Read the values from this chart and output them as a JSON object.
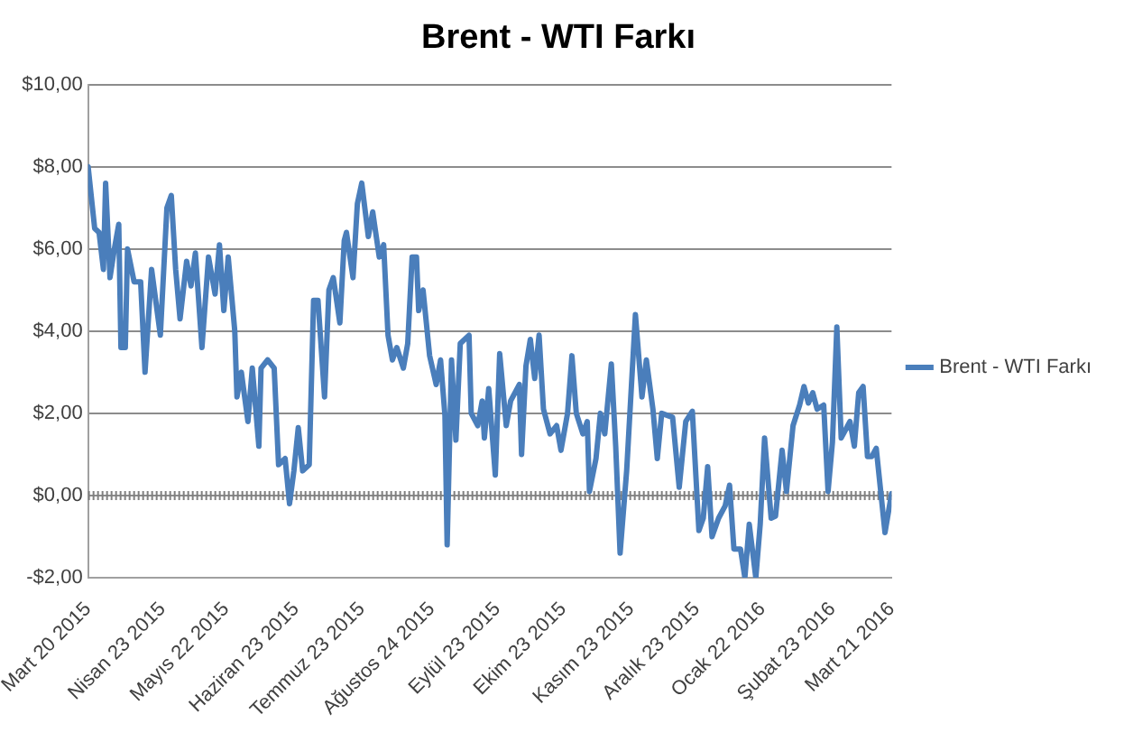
{
  "chart_data": {
    "type": "line",
    "title": "Brent - WTI Farkı",
    "legend": "right",
    "grid": "y",
    "marker": "none",
    "line_style": "solid",
    "xlim": [
      "2015-03-20",
      "2016-03-21"
    ],
    "xticks": [
      {
        "value": "2015-03-20",
        "label": "Mart 20 2015"
      },
      {
        "value": "2015-04-23",
        "label": "Nisan 23 2015"
      },
      {
        "value": "2015-05-22",
        "label": "Mayıs 22 2015"
      },
      {
        "value": "2015-06-23",
        "label": "Haziran 23 2015"
      },
      {
        "value": "2015-07-23",
        "label": "Temmuz 23 2015"
      },
      {
        "value": "2015-08-24",
        "label": "Ağustos 24 2015"
      },
      {
        "value": "2015-09-23",
        "label": "Eylül 23 2015"
      },
      {
        "value": "2015-10-23",
        "label": "Ekim 23 2015"
      },
      {
        "value": "2015-11-23",
        "label": "Kasım 23 2015"
      },
      {
        "value": "2015-12-23",
        "label": "Aralık 23 2015"
      },
      {
        "value": "2016-01-22",
        "label": "Ocak 22 2016"
      },
      {
        "value": "2016-02-23",
        "label": "Şubat 23 2016"
      },
      {
        "value": "2016-03-21",
        "label": "Mart 21 2016"
      }
    ],
    "ylim": [
      -2,
      10
    ],
    "yticks": [
      {
        "value": -2,
        "label": "-$2,00"
      },
      {
        "value": 0,
        "label": "$0,00"
      },
      {
        "value": 2,
        "label": "$2,00"
      },
      {
        "value": 4,
        "label": "$4,00"
      },
      {
        "value": 6,
        "label": "$6,00"
      },
      {
        "value": 8,
        "label": "$8,00"
      },
      {
        "value": 10,
        "label": "$10,00"
      }
    ],
    "ref_lines": [
      {
        "axis": "y",
        "value": 0,
        "color": "#808080",
        "line_style": "dotted"
      }
    ],
    "x": [
      "2015-03-20",
      "2015-03-23",
      "2015-03-25",
      "2015-03-27",
      "2015-03-28",
      "2015-03-30",
      "2015-04-01",
      "2015-04-03",
      "2015-04-04",
      "2015-04-06",
      "2015-04-07",
      "2015-04-10",
      "2015-04-13",
      "2015-04-15",
      "2015-04-18",
      "2015-04-22",
      "2015-04-25",
      "2015-04-27",
      "2015-04-29",
      "2015-05-01",
      "2015-05-04",
      "2015-05-06",
      "2015-05-08",
      "2015-05-11",
      "2015-05-14",
      "2015-05-17",
      "2015-05-19",
      "2015-05-21",
      "2015-05-23",
      "2015-05-26",
      "2015-05-27",
      "2015-05-29",
      "2015-06-01",
      "2015-06-03",
      "2015-06-06",
      "2015-06-07",
      "2015-06-10",
      "2015-06-13",
      "2015-06-15",
      "2015-06-18",
      "2015-06-20",
      "2015-06-22",
      "2015-06-24",
      "2015-06-26",
      "2015-06-29",
      "2015-07-01",
      "2015-07-03",
      "2015-07-06",
      "2015-07-08",
      "2015-07-10",
      "2015-07-13",
      "2015-07-15",
      "2015-07-16",
      "2015-07-19",
      "2015-07-21",
      "2015-07-23",
      "2015-07-26",
      "2015-07-28",
      "2015-07-31",
      "2015-08-02",
      "2015-08-04",
      "2015-08-06",
      "2015-08-08",
      "2015-08-11",
      "2015-08-13",
      "2015-08-15",
      "2015-08-17",
      "2015-08-18",
      "2015-08-20",
      "2015-08-23",
      "2015-08-26",
      "2015-08-28",
      "2015-08-30",
      "2015-08-31",
      "2015-09-02",
      "2015-09-04",
      "2015-09-06",
      "2015-09-10",
      "2015-09-11",
      "2015-09-14",
      "2015-09-16",
      "2015-09-17",
      "2015-09-19",
      "2015-09-22",
      "2015-09-24",
      "2015-09-27",
      "2015-09-29",
      "2015-10-03",
      "2015-10-04",
      "2015-10-06",
      "2015-10-08",
      "2015-10-10",
      "2015-10-12",
      "2015-10-14",
      "2015-10-17",
      "2015-10-20",
      "2015-10-22",
      "2015-10-25",
      "2015-10-27",
      "2015-10-29",
      "2015-11-01",
      "2015-11-03",
      "2015-11-04",
      "2015-11-07",
      "2015-11-09",
      "2015-11-11",
      "2015-11-14",
      "2015-11-16",
      "2015-11-18",
      "2015-11-21",
      "2015-11-25",
      "2015-11-28",
      "2015-11-30",
      "2015-12-03",
      "2015-12-05",
      "2015-12-07",
      "2015-12-12",
      "2015-12-15",
      "2015-12-18",
      "2015-12-21",
      "2015-12-24",
      "2015-12-26",
      "2015-12-28",
      "2015-12-30",
      "2016-01-02",
      "2016-01-05",
      "2016-01-07",
      "2016-01-09",
      "2016-01-12",
      "2016-01-14",
      "2016-01-16",
      "2016-01-19",
      "2016-01-21",
      "2016-01-23",
      "2016-01-26",
      "2016-01-28",
      "2016-01-31",
      "2016-02-02",
      "2016-02-05",
      "2016-02-08",
      "2016-02-10",
      "2016-02-12",
      "2016-02-14",
      "2016-02-16",
      "2016-02-19",
      "2016-02-21",
      "2016-02-23",
      "2016-02-25",
      "2016-02-27",
      "2016-03-02",
      "2016-03-04",
      "2016-03-06",
      "2016-03-08",
      "2016-03-10",
      "2016-03-12",
      "2016-03-14",
      "2016-03-18",
      "2016-03-21"
    ],
    "series": [
      {
        "name": "Brent - WTI Farkı",
        "color": "#4a7ebb",
        "values": [
          8.0,
          6.5,
          6.4,
          5.5,
          7.6,
          5.3,
          6.0,
          6.6,
          3.6,
          3.6,
          6.0,
          5.2,
          5.2,
          3.0,
          5.5,
          3.9,
          7.0,
          7.3,
          5.5,
          4.3,
          5.7,
          5.1,
          5.9,
          3.6,
          5.8,
          4.9,
          6.1,
          4.5,
          5.8,
          4.0,
          2.4,
          3.0,
          1.8,
          3.1,
          1.2,
          3.1,
          3.3,
          3.1,
          0.75,
          0.9,
          -0.2,
          0.6,
          1.65,
          0.6,
          0.75,
          4.75,
          4.75,
          2.4,
          5.0,
          5.3,
          4.2,
          6.2,
          6.4,
          5.3,
          7.1,
          7.6,
          6.3,
          6.9,
          5.8,
          6.1,
          3.9,
          3.3,
          3.6,
          3.1,
          3.7,
          5.8,
          5.8,
          4.5,
          5.0,
          3.4,
          2.7,
          3.3,
          1.95,
          -1.2,
          3.3,
          1.35,
          3.7,
          3.9,
          2.0,
          1.7,
          2.3,
          1.4,
          2.6,
          0.5,
          3.45,
          1.7,
          2.3,
          2.7,
          1.0,
          3.15,
          3.8,
          2.85,
          3.9,
          2.1,
          1.5,
          1.7,
          1.1,
          2.0,
          3.4,
          2.0,
          1.5,
          1.8,
          0.1,
          0.9,
          2.0,
          1.5,
          3.2,
          1.2,
          -1.4,
          0.6,
          4.4,
          2.4,
          3.3,
          2.1,
          0.9,
          2.0,
          1.9,
          0.2,
          1.8,
          2.05,
          -0.85,
          -0.55,
          0.7,
          -1.0,
          -0.55,
          -0.25,
          0.25,
          -1.3,
          -1.3,
          -2.0,
          -0.7,
          -2.0,
          -0.7,
          1.4,
          -0.55,
          -0.5,
          1.1,
          0.1,
          1.7,
          2.2,
          2.65,
          2.25,
          2.5,
          2.1,
          2.2,
          0.1,
          1.3,
          4.1,
          1.4,
          1.8,
          1.2,
          2.5,
          2.65,
          0.95,
          0.95,
          1.15,
          -0.9,
          0.05
        ]
      }
    ]
  }
}
